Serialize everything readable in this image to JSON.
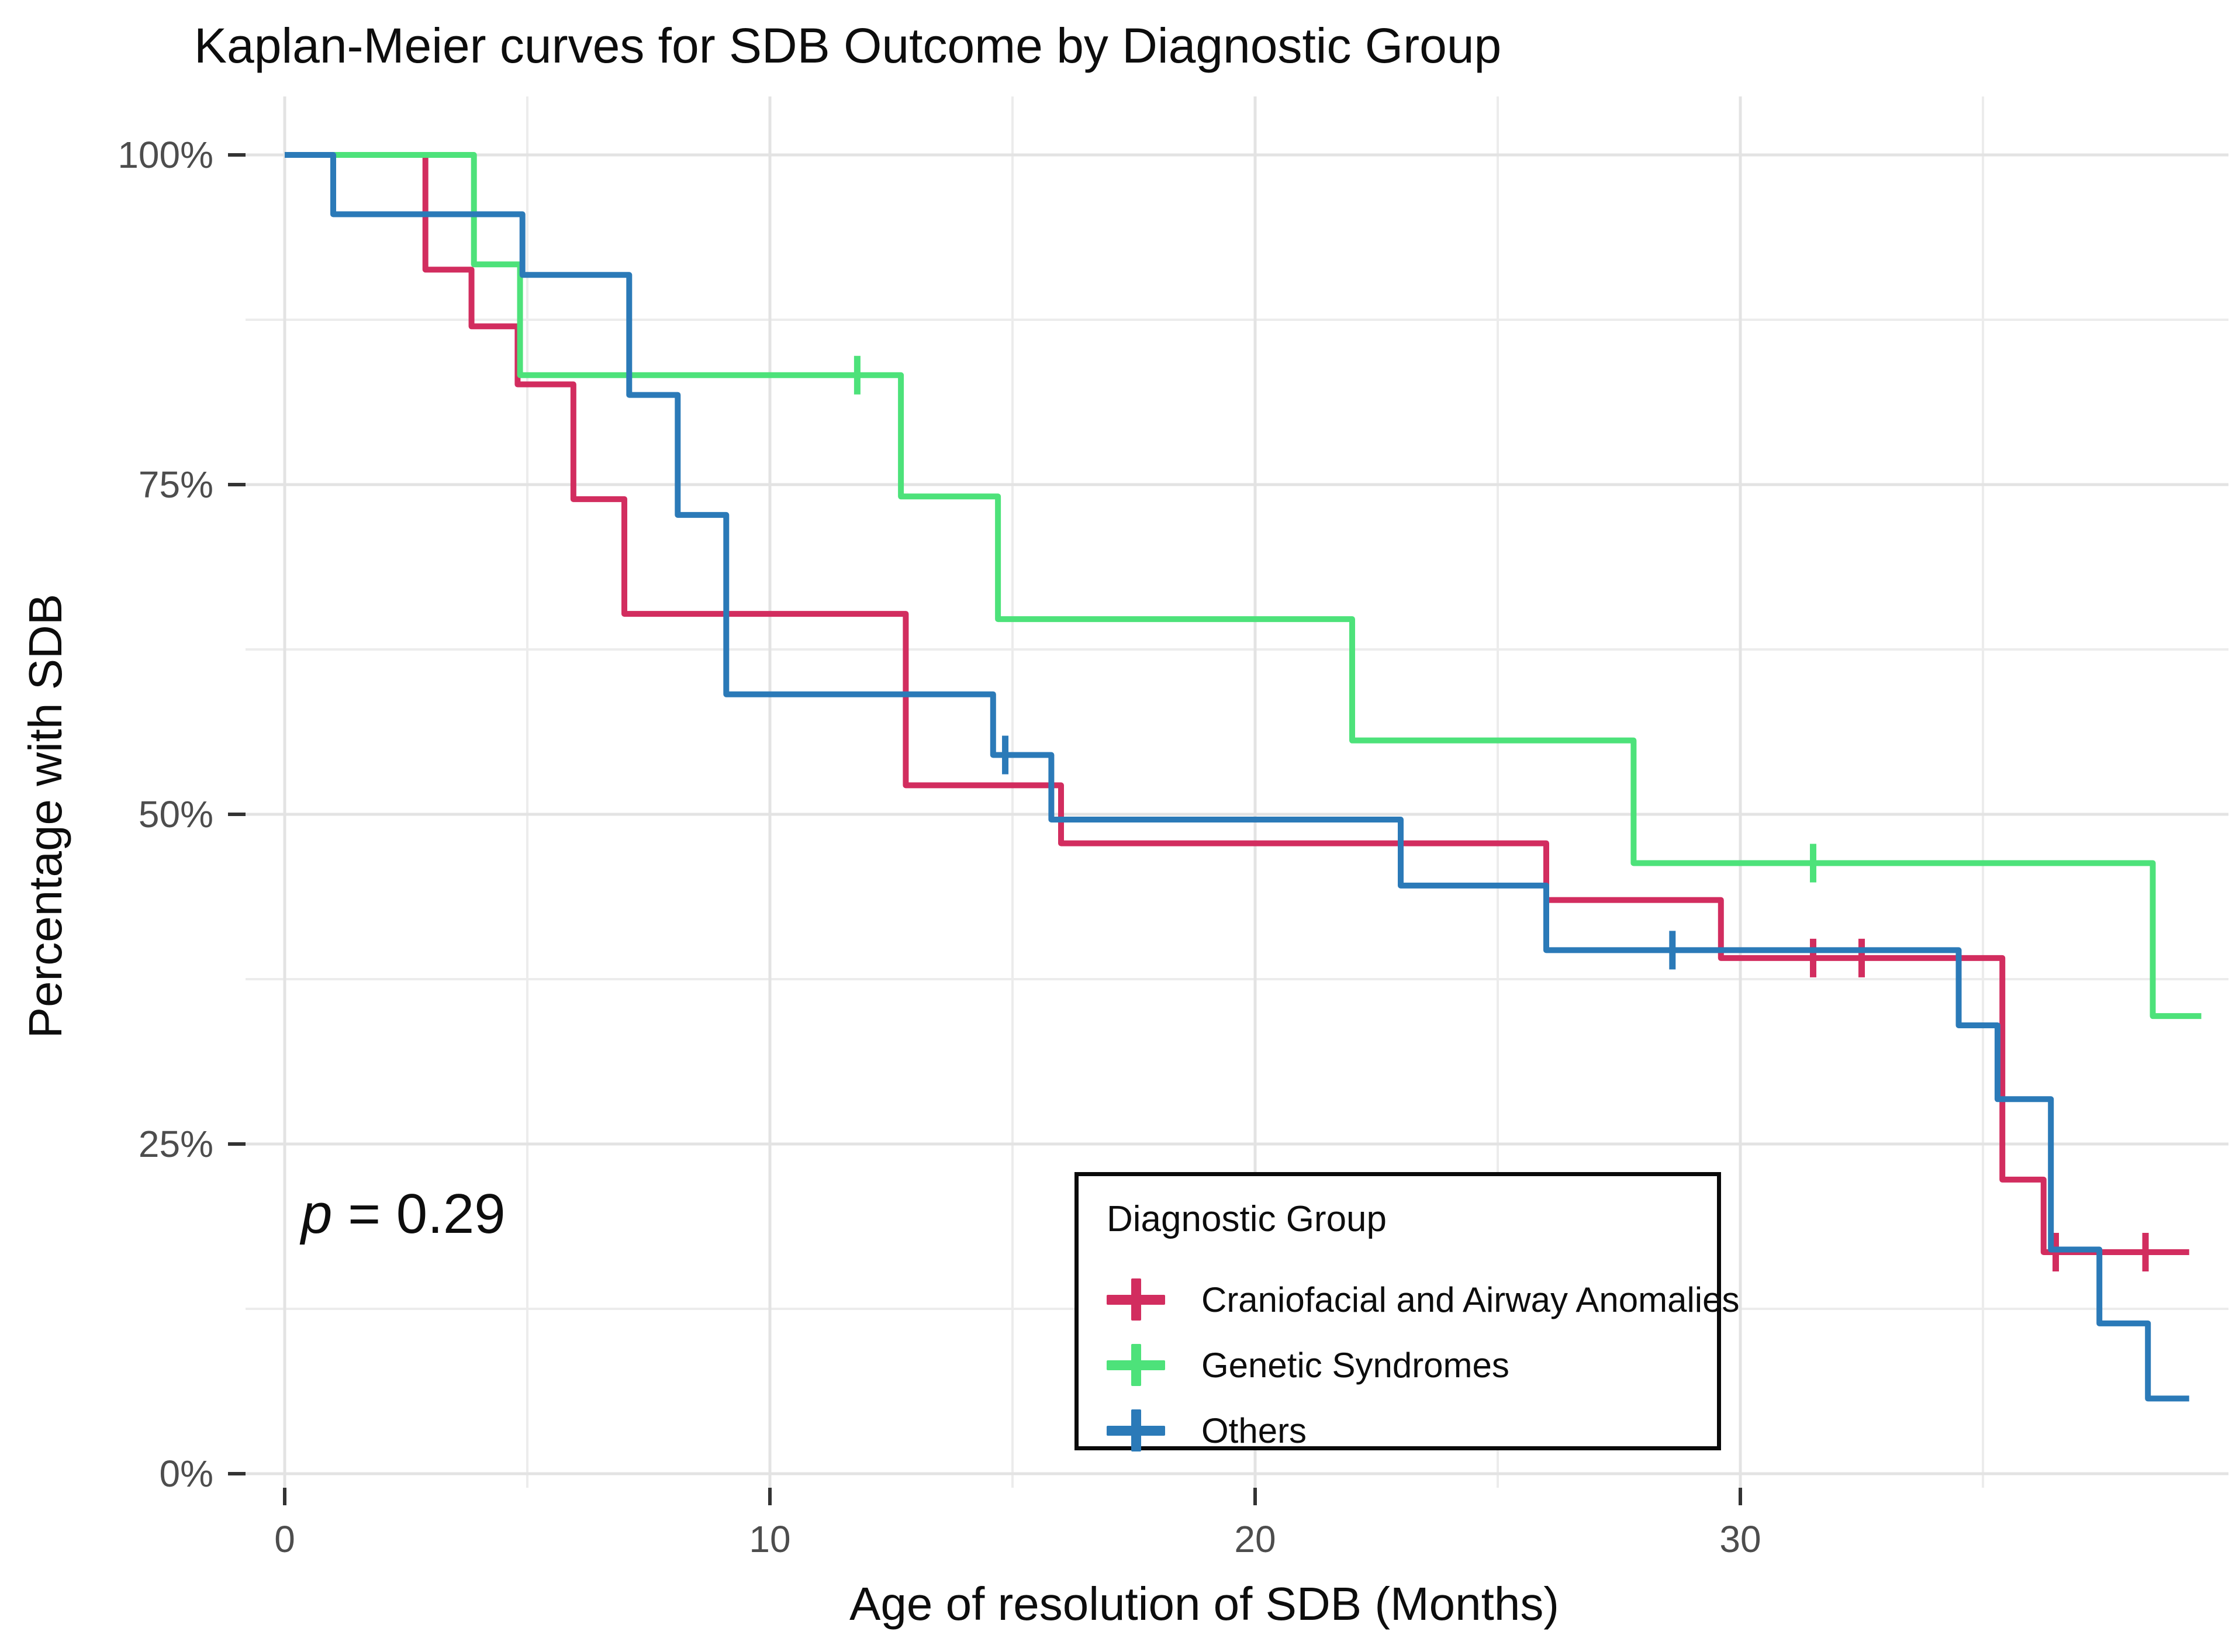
{
  "chart_data": {
    "type": "line",
    "subtype": "kaplan-meier-step",
    "title": "Kaplan-Meier curves for SDB Outcome by Diagnostic Group",
    "xlabel": "Age of resolution of SDB (Months)",
    "ylabel": "Percentage with SDB",
    "xlim": [
      0,
      39.5
    ],
    "ylim": [
      0,
      100
    ],
    "grid": "on",
    "x_ticks": [
      0,
      10,
      20,
      30
    ],
    "x_tick_labels": [
      "0",
      "10",
      "20",
      "30"
    ],
    "x_minor_ticks": [
      5,
      15,
      25,
      35
    ],
    "y_ticks": [
      0,
      25,
      50,
      75,
      100
    ],
    "y_tick_labels": [
      "0%",
      "25%",
      "50%",
      "75%",
      "100%"
    ],
    "y_minor_ticks": [
      12.5,
      37.5,
      62.5,
      87.5
    ],
    "legend_position": "inside-bottom-right",
    "series": [
      {
        "name": "Craniofacial and Airway Anomalies",
        "color": "#D22D5F",
        "end_time": 39.25,
        "steps": [
          [
            0,
            100
          ],
          [
            2.9,
            91.3
          ],
          [
            3.85,
            87.0
          ],
          [
            4.8,
            82.6
          ],
          [
            5.95,
            73.9
          ],
          [
            7.0,
            65.2
          ],
          [
            12.8,
            52.2
          ],
          [
            16.0,
            47.8
          ],
          [
            26.0,
            43.5
          ],
          [
            29.6,
            39.1
          ],
          [
            35.4,
            22.3
          ],
          [
            36.25,
            16.8
          ]
        ],
        "censors": [
          [
            31.5,
            39.1
          ],
          [
            32.5,
            39.1
          ],
          [
            36.5,
            16.8
          ],
          [
            38.35,
            16.8
          ]
        ]
      },
      {
        "name": "Genetic Syndromes",
        "color": "#4DE27A",
        "end_time": 39.5,
        "steps": [
          [
            0,
            100
          ],
          [
            3.9,
            91.7
          ],
          [
            4.85,
            83.3
          ],
          [
            12.7,
            74.1
          ],
          [
            14.7,
            64.8
          ],
          [
            22.0,
            55.6
          ],
          [
            27.8,
            46.3
          ],
          [
            38.5,
            34.7
          ]
        ],
        "censors": [
          [
            11.8,
            83.3
          ],
          [
            31.5,
            46.3
          ]
        ]
      },
      {
        "name": "Others",
        "color": "#2B7AB8",
        "end_time": 39.25,
        "steps": [
          [
            0,
            100
          ],
          [
            1.0,
            95.5
          ],
          [
            4.9,
            90.9
          ],
          [
            7.1,
            81.8
          ],
          [
            8.1,
            72.7
          ],
          [
            9.1,
            59.1
          ],
          [
            14.6,
            54.5
          ],
          [
            15.8,
            49.6
          ],
          [
            23.0,
            44.6
          ],
          [
            26.0,
            39.7
          ],
          [
            34.5,
            34.0
          ],
          [
            35.3,
            28.4
          ],
          [
            36.4,
            17.0
          ],
          [
            37.4,
            11.4
          ],
          [
            38.4,
            5.7
          ]
        ],
        "censors": [
          [
            14.85,
            54.5
          ],
          [
            28.6,
            39.7
          ]
        ]
      }
    ]
  },
  "annotation": {
    "symbol": "p",
    "rest": " = 0.29"
  },
  "legend": {
    "title": "Diagnostic Group"
  },
  "colors": {
    "major_grid": "#E3E3E3",
    "minor_grid": "#ECECEC",
    "tick_mark": "#333333",
    "tick_label": "#4D4D4D"
  }
}
